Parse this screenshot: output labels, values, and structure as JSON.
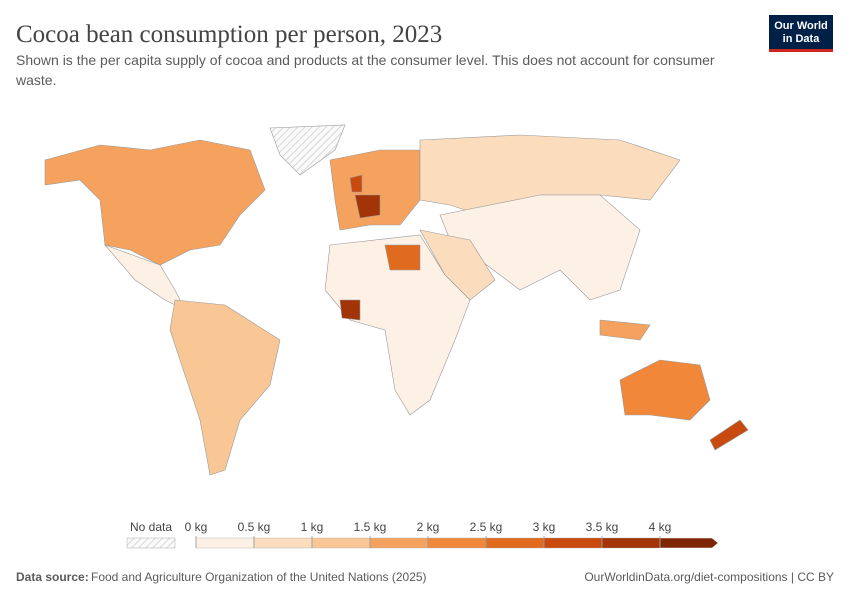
{
  "header": {
    "title": "Cocoa bean consumption per person, 2023",
    "subtitle": "Shown is the per capita supply of cocoa and products at the consumer level. This does not account for consumer waste.",
    "logo": [
      "Our World",
      "in Data"
    ]
  },
  "legend": {
    "no_data": "No data",
    "ticks": [
      "0 kg",
      "0.5 kg",
      "1 kg",
      "1.5 kg",
      "2 kg",
      "2.5 kg",
      "3 kg",
      "3.5 kg",
      "4 kg"
    ],
    "colors": [
      "#fdf1e6",
      "#fbdcbd",
      "#f9c796",
      "#f6a25f",
      "#f08739",
      "#e06a1e",
      "#c84a0f",
      "#a23407",
      "#7f2704"
    ]
  },
  "footer": {
    "source_label": "Data source:",
    "source": "Food and Agriculture Organization of the United Nations (2025)",
    "link": "OurWorldinData.org/diet-compositions | CC BY"
  }
}
